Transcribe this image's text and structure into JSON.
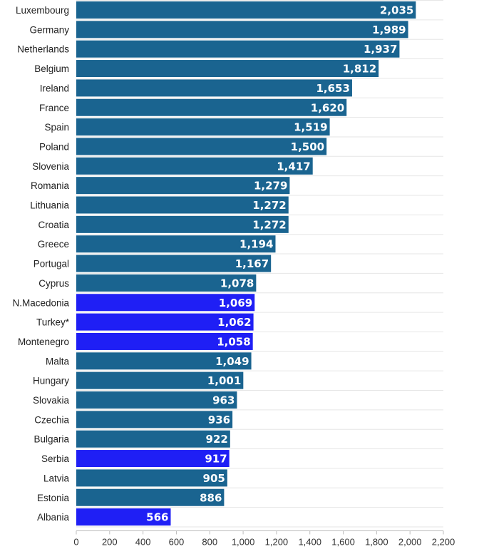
{
  "chart_data": {
    "type": "bar",
    "orientation": "horizontal",
    "categories": [
      "Luxembourg",
      "Germany",
      "Netherlands",
      "Belgium",
      "Ireland",
      "France",
      "Spain",
      "Poland",
      "Slovenia",
      "Romania",
      "Lithuania",
      "Croatia",
      "Greece",
      "Portugal",
      "Cyprus",
      "N.Macedonia",
      "Turkey*",
      "Montenegro",
      "Malta",
      "Hungary",
      "Slovakia",
      "Czechia",
      "Bulgaria",
      "Serbia",
      "Latvia",
      "Estonia",
      "Albania"
    ],
    "values": [
      2035,
      1989,
      1937,
      1812,
      1653,
      1620,
      1519,
      1500,
      1417,
      1279,
      1272,
      1272,
      1194,
      1167,
      1078,
      1069,
      1062,
      1058,
      1049,
      1001,
      963,
      936,
      922,
      917,
      905,
      886,
      566
    ],
    "value_labels": [
      "2,035",
      "1,989",
      "1,937",
      "1,812",
      "1,653",
      "1,620",
      "1,519",
      "1,500",
      "1,417",
      "1,279",
      "1,272",
      "1,272",
      "1,194",
      "1,167",
      "1,078",
      "1,069",
      "1,062",
      "1,058",
      "1,049",
      "1,001",
      "963",
      "936",
      "922",
      "917",
      "905",
      "886",
      "566"
    ],
    "highlighted": [
      "N.Macedonia",
      "Turkey*",
      "Montenegro",
      "Serbia",
      "Albania"
    ],
    "xlim": [
      0,
      2200
    ],
    "x_ticks": [
      0,
      200,
      400,
      600,
      800,
      1000,
      1200,
      1400,
      1600,
      1800,
      2000,
      2200
    ],
    "x_tick_labels": [
      "0",
      "200",
      "400",
      "600",
      "800",
      "1,000",
      "1,200",
      "1,400",
      "1,600",
      "1,800",
      "2,000",
      "2,200"
    ],
    "grid": true,
    "colors": {
      "default": "#1a6490",
      "highlight": "#1f1ff5"
    }
  }
}
